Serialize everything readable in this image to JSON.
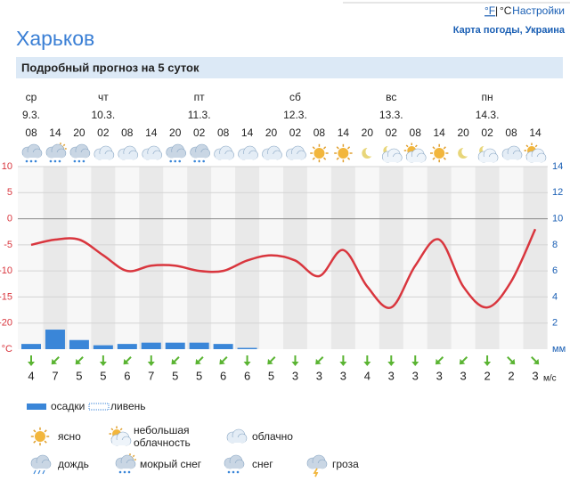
{
  "header": {
    "units": [
      "°F",
      "|",
      "°C"
    ],
    "settings": "Настройки",
    "map_link": "Карта погоды, Украина",
    "city": "Харьков",
    "section_title": "Подробный прогноз на 5 суток"
  },
  "chart_data": {
    "type": "line",
    "days": [
      {
        "name": "ср",
        "date": "9.3."
      },
      {
        "name": "чт",
        "date": "10.3."
      },
      {
        "name": "пт",
        "date": "11.3."
      },
      {
        "name": "сб",
        "date": "12.3."
      },
      {
        "name": "вс",
        "date": "13.3."
      },
      {
        "name": "пн",
        "date": "14.3."
      }
    ],
    "categories": [
      "08",
      "14",
      "20",
      "02",
      "08",
      "14",
      "20",
      "02",
      "08",
      "14",
      "20",
      "02",
      "08",
      "14",
      "20",
      "02",
      "08",
      "14",
      "20",
      "02",
      "08",
      "14"
    ],
    "conditions": [
      5,
      4,
      5,
      2,
      2,
      2,
      5,
      5,
      2,
      2,
      2,
      2,
      0,
      0,
      0,
      1,
      1,
      0,
      0,
      1,
      2,
      1
    ],
    "series": [
      {
        "color": "#d9363e",
        "values": [
          -5,
          -4,
          -4,
          -7,
          -10,
          -9,
          -9,
          -10,
          -10,
          -8,
          -7,
          -8,
          -11,
          -6,
          -13,
          -17,
          -9,
          -4,
          -13,
          -17,
          -12,
          -2
        ]
      },
      {
        "name": "осадки",
        "color": "#3a86d8",
        "axis": "y2",
        "values": [
          0.4,
          1.5,
          0.7,
          0.3,
          0.4,
          0.5,
          0.5,
          0.5,
          0.4,
          0.1,
          0,
          0,
          0,
          0,
          0,
          0,
          0,
          0,
          0,
          0,
          0,
          0
        ]
      }
    ],
    "ylim": [
      -25,
      10
    ],
    "yticks": [
      10,
      5,
      0,
      -5,
      -10,
      -15,
      -20,
      {
        "value": -25,
        "label": "°C"
      }
    ],
    "y2lim": [
      0,
      14
    ],
    "y2ticks": [
      14,
      12,
      10,
      8,
      6,
      4,
      2,
      {
        "value": 0,
        "label": "мм"
      }
    ],
    "grid": true,
    "wind": {
      "unit": "м/с",
      "color": "#5ab432",
      "speeds": [
        4,
        7,
        5,
        5,
        6,
        7,
        5,
        5,
        6,
        6,
        5,
        3,
        3,
        3,
        4,
        3,
        3,
        3,
        3,
        2,
        2,
        3
      ],
      "directions": [
        0,
        45,
        45,
        0,
        45,
        0,
        45,
        45,
        45,
        0,
        45,
        0,
        45,
        0,
        0,
        0,
        0,
        45,
        45,
        0,
        -45,
        -45
      ]
    }
  },
  "legend": {
    "precipitation": "осадки",
    "shower": "ливень",
    "icons": [
      "ясно",
      "небольшая облачность",
      "облачно",
      "дождь",
      "мокрый снег",
      "снег",
      "гроза"
    ]
  }
}
